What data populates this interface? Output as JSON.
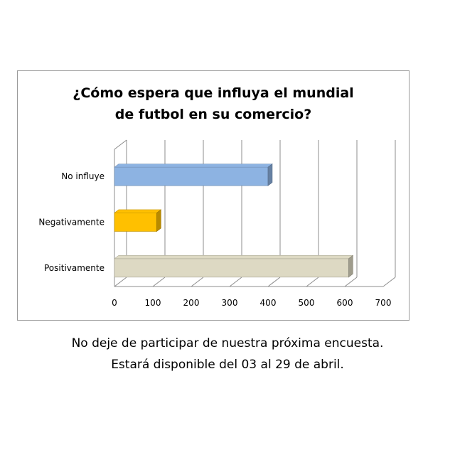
{
  "chart_data": {
    "type": "bar",
    "orientation": "horizontal",
    "title_lines": [
      "¿Cómo espera que influya el mundial",
      "de futbol en su comercio?"
    ],
    "categories": [
      "No influye",
      "Negativamente",
      "Positivamente"
    ],
    "values": [
      400,
      110,
      610
    ],
    "colors": [
      "#8db3e2",
      "#ffc000",
      "#ddd9c3"
    ],
    "xlim": [
      0,
      700
    ],
    "xticks": [
      "0",
      "100",
      "200",
      "300",
      "400",
      "500",
      "600",
      "700"
    ],
    "grid": true,
    "legend": "none"
  },
  "caption": {
    "line1": "No deje de participar de nuestra próxima encuesta.",
    "line2": "Estará disponible del 03 al 29 de abril."
  }
}
